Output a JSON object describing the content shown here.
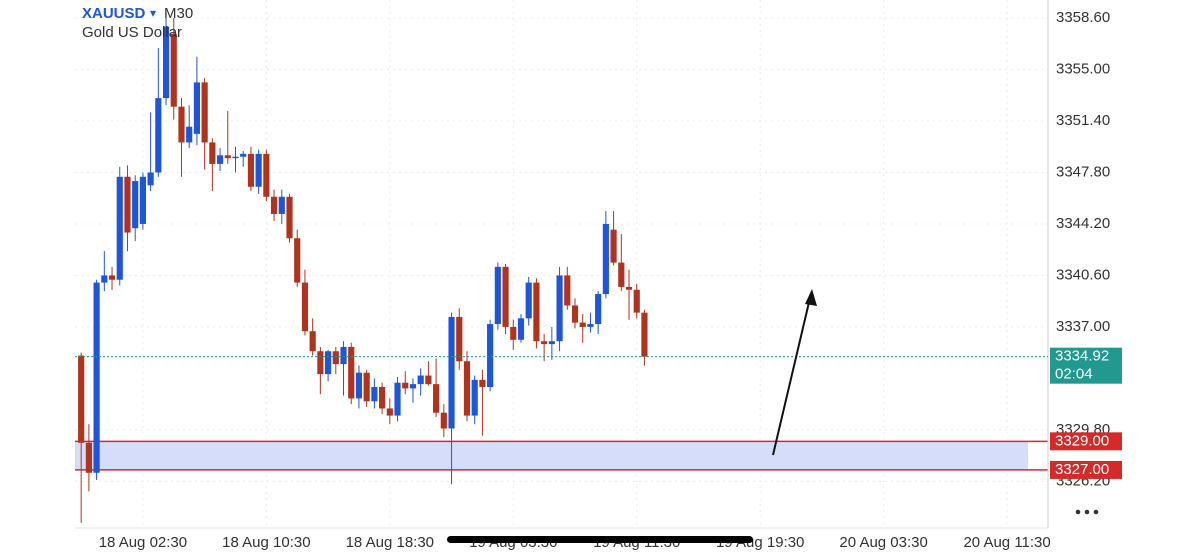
{
  "chart_data": {
    "type": "candlestick",
    "symbol": "XAUUSD",
    "dropdown": "▾",
    "timeframe": "M30",
    "subtitle": "Gold US Dollar",
    "up_color": "#1f56d8",
    "down_color": "#b0331e",
    "x": [
      0,
      1,
      2,
      3,
      4,
      5,
      6,
      7,
      8,
      9,
      10,
      11,
      12,
      13,
      14,
      15,
      16,
      17,
      18,
      19,
      20,
      21,
      22,
      23,
      24,
      25,
      26,
      27,
      28,
      29,
      30,
      31,
      32,
      33,
      34,
      35,
      36,
      37,
      38,
      39,
      40,
      41,
      42,
      43,
      44,
      45,
      46,
      47,
      48,
      49,
      50,
      51,
      52,
      53,
      54,
      55,
      56,
      57,
      58,
      59,
      60,
      61,
      62,
      63,
      64,
      65,
      66,
      67,
      68,
      69,
      70,
      71,
      72,
      73
    ],
    "open": [
      3335.0,
      3328.9,
      3326.8,
      3340.1,
      3340.6,
      3340.3,
      3347.5,
      3343.9,
      3344.2,
      3346.9,
      3347.8,
      3353.0,
      3357.5,
      3352.4,
      3349.9,
      3350.5,
      3354.1,
      3349.9,
      3348.4,
      3349.0,
      3348.8,
      3348.9,
      3349.1,
      3346.8,
      3349.1,
      3346.1,
      3344.9,
      3346.1,
      3343.2,
      3340.1,
      3336.7,
      3335.3,
      3333.7,
      3335.3,
      3334.4,
      3335.6,
      3332.0,
      3333.8,
      3331.8,
      3332.8,
      3331.3,
      3330.8,
      3333.1,
      3332.7,
      3333.0,
      3333.6,
      3333.0,
      3331.0,
      3329.9,
      3337.7,
      3334.6,
      3330.8,
      3333.3,
      3332.8,
      3337.2,
      3341.2,
      3337.0,
      3336.1,
      3337.6,
      3340.1,
      3336.0,
      3335.8,
      3336.0,
      3340.6,
      3338.5,
      3337.3,
      3337.0,
      3337.2,
      3339.3,
      3343.8,
      3341.5,
      3339.8,
      3339.6,
      3338.0
    ],
    "high": [
      3335.2,
      3330.2,
      3340.3,
      3342.3,
      3341.2,
      3348.2,
      3348.3,
      3347.6,
      3347.8,
      3352.0,
      3356.5,
      3359.0,
      3358.6,
      3353.0,
      3352.5,
      3355.9,
      3354.4,
      3350.2,
      3349.5,
      3352.1,
      3349.6,
      3349.3,
      3349.6,
      3349.4,
      3349.4,
      3346.6,
      3346.6,
      3346.3,
      3343.8,
      3341.0,
      3337.6,
      3335.6,
      3335.4,
      3335.6,
      3336.0,
      3335.9,
      3334.3,
      3334.0,
      3333.4,
      3333.1,
      3332.0,
      3333.5,
      3333.9,
      3333.4,
      3334.1,
      3334.6,
      3334.8,
      3331.6,
      3338.0,
      3338.3,
      3335.3,
      3333.6,
      3334.0,
      3337.5,
      3341.5,
      3341.4,
      3337.5,
      3337.9,
      3340.5,
      3340.4,
      3336.5,
      3337.0,
      3341.2,
      3341.2,
      3339.0,
      3337.9,
      3338.0,
      3339.5,
      3345.1,
      3345.1,
      3343.5,
      3341.0,
      3340.0,
      3338.2
    ],
    "low": [
      3323.3,
      3325.5,
      3326.3,
      3339.5,
      3339.6,
      3339.9,
      3342.3,
      3343.0,
      3343.8,
      3346.5,
      3347.5,
      3352.5,
      3351.5,
      3347.5,
      3349.5,
      3349.7,
      3348.0,
      3346.5,
      3347.9,
      3348.4,
      3347.8,
      3348.2,
      3346.5,
      3346.3,
      3345.8,
      3344.4,
      3344.2,
      3342.9,
      3339.8,
      3336.4,
      3335.0,
      3332.3,
      3333.2,
      3333.7,
      3332.2,
      3331.6,
      3331.3,
      3331.4,
      3331.3,
      3330.9,
      3330.2,
      3330.4,
      3332.3,
      3331.7,
      3332.2,
      3332.9,
      3330.7,
      3329.3,
      3326.0,
      3334.0,
      3330.4,
      3330.2,
      3329.4,
      3332.5,
      3336.8,
      3336.5,
      3335.4,
      3335.9,
      3337.1,
      3335.5,
      3334.6,
      3334.7,
      3335.3,
      3338.2,
      3336.9,
      3335.9,
      3336.6,
      3336.5,
      3339.0,
      3341.3,
      3339.5,
      3337.5,
      3337.6,
      3334.3
    ],
    "close": [
      3328.9,
      3326.8,
      3340.1,
      3340.6,
      3340.3,
      3347.5,
      3343.6,
      3347.2,
      3347.5,
      3347.8,
      3353.0,
      3358.0,
      3352.4,
      3349.9,
      3351.0,
      3354.1,
      3349.9,
      3348.4,
      3349.0,
      3348.8,
      3348.9,
      3349.1,
      3346.8,
      3349.1,
      3346.1,
      3344.9,
      3346.1,
      3343.2,
      3340.1,
      3336.7,
      3335.3,
      3333.7,
      3335.3,
      3334.4,
      3335.6,
      3332.0,
      3333.8,
      3331.8,
      3332.8,
      3331.3,
      3330.8,
      3333.1,
      3332.7,
      3333.0,
      3333.6,
      3333.0,
      3331.0,
      3329.9,
      3337.7,
      3334.6,
      3330.8,
      3333.3,
      3332.8,
      3337.2,
      3341.2,
      3337.0,
      3336.1,
      3337.6,
      3340.1,
      3336.0,
      3335.8,
      3336.0,
      3340.6,
      3338.5,
      3337.3,
      3337.0,
      3337.2,
      3339.3,
      3344.2,
      3341.5,
      3339.8,
      3339.6,
      3338.0,
      3334.92
    ],
    "xlim": [
      -0.8,
      125.3
    ],
    "xticks": [
      {
        "value": 8,
        "label": "18 Aug 02:30"
      },
      {
        "value": 24,
        "label": "18 Aug 10:30"
      },
      {
        "value": 40,
        "label": "18 Aug 18:30"
      },
      {
        "value": 56,
        "label": "19 Aug 03:30"
      },
      {
        "value": 72,
        "label": "19 Aug 11:30"
      },
      {
        "value": 88,
        "label": "19 Aug 19:30"
      },
      {
        "value": 104,
        "label": "20 Aug 03:30"
      },
      {
        "value": 120,
        "label": "20 Aug 11:30"
      }
    ],
    "ylim": [
      3322.94,
      3359.86
    ],
    "yticks": [
      {
        "value": 3358.6,
        "label": "3358.60"
      },
      {
        "value": 3355,
        "label": "3355.00"
      },
      {
        "value": 3351.4,
        "label": "3351.40"
      },
      {
        "value": 3347.8,
        "label": "3347.80"
      },
      {
        "value": 3344.2,
        "label": "3344.20"
      },
      {
        "value": 3340.6,
        "label": "3340.60"
      },
      {
        "value": 3337,
        "label": "3337.00"
      },
      {
        "value": 3329.8,
        "label": "3329.80"
      },
      {
        "value": 3326.2,
        "label": "3326.20"
      }
    ],
    "grid": true,
    "last_price": 3334.92,
    "countdown": "02:04",
    "last_price_color": "#22998e",
    "zone": {
      "high": {
        "value": 3329,
        "label": "3329.00"
      },
      "low": {
        "value": 3327,
        "label": "3327.00"
      },
      "line_color": "#d42a2a",
      "fill": "#d6ddfa"
    }
  }
}
